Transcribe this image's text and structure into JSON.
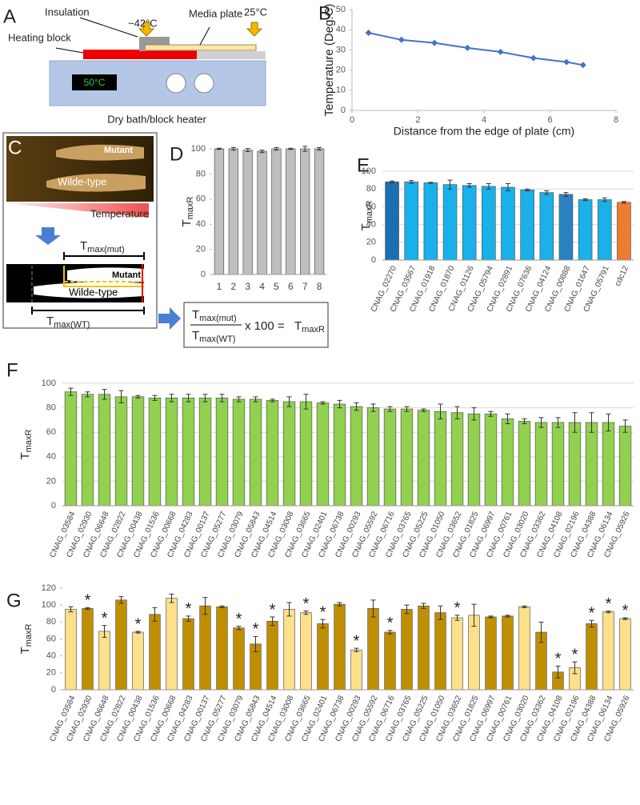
{
  "diagram_a": {
    "label": "A",
    "insulation": "Insulation",
    "hot_temp": "~42°C",
    "media_plate": "Media plate",
    "cool_temp": "25°C",
    "heating_block": "Heating block",
    "display": "50°C",
    "caption": "Dry bath/block heater"
  },
  "diagram_c": {
    "label": "C",
    "mutant": "Mutant",
    "wild": "Wilde-type",
    "temperature": "Temperature",
    "tmax_mut": {
      "main": "T",
      "sub": "max(mut)"
    },
    "mutant2": "Mutant",
    "wild2": "Wilde-type",
    "tmax_wt": {
      "main": "T",
      "sub": "max(WT)"
    }
  },
  "formula": {
    "numerator": {
      "main": "T",
      "sub": "max(mut)"
    },
    "denominator": {
      "main": "T",
      "sub": "max(WT)"
    },
    "times": "x 100 =",
    "result": {
      "main": "T",
      "sub": "maxR"
    }
  },
  "chart_data": [
    {
      "type": "line",
      "label": "B",
      "xlabel": "Distance from the edge of plate (cm)",
      "ylabel": "Temperature (Deg.C)",
      "color": "#4472c4",
      "x": [
        0.5,
        1.5,
        2.5,
        3.5,
        4.5,
        5.5,
        6.5,
        7
      ],
      "values": [
        38.5,
        35,
        33.5,
        31,
        29,
        26,
        24,
        22.5
      ],
      "xlim": [
        0,
        8
      ],
      "xticks": [
        0,
        2,
        4,
        6,
        8
      ],
      "ylim": [
        0,
        50
      ],
      "yticks": [
        0,
        10,
        20,
        30,
        40,
        50
      ],
      "grid": false
    },
    {
      "type": "bar",
      "label": "D",
      "ylabel": "T",
      "ylabel_sub": "maxR",
      "color": "#bfbfbf",
      "categories": [
        "1",
        "2",
        "3",
        "4",
        "5",
        "6",
        "7",
        "8"
      ],
      "values": [
        100,
        100,
        99,
        98,
        100,
        100,
        100,
        100
      ],
      "errors": [
        0.5,
        1,
        1.2,
        1,
        1,
        0.5,
        2,
        1
      ],
      "ylim": [
        0,
        100
      ],
      "yticks": [
        0,
        20,
        40,
        60,
        80,
        100
      ],
      "grid": false
    },
    {
      "type": "bar",
      "label": "E",
      "ylabel": "T",
      "ylabel_sub": "maxR",
      "color": "#1ab0ea",
      "categories": [
        "CNAG_02270",
        "CNAG_03567",
        "CNAG_01918",
        "CNAG_01870",
        "CNAG_01126",
        "CNAG_05794",
        "CNAG_02891",
        "CNAG_07636",
        "CNAG_04124",
        "CNAG_00888",
        "CNAG_01647",
        "CNAG_05791",
        "cdc12"
      ],
      "values": [
        88,
        88,
        87,
        85,
        84,
        83,
        82,
        79,
        76,
        74,
        68,
        68,
        65
      ],
      "errors": [
        1,
        1.5,
        0.5,
        5,
        2,
        3,
        4,
        1,
        2,
        2,
        1,
        2,
        1
      ],
      "colors": [
        "#1a6fb3",
        "#1ab0ea",
        "#1ab0ea",
        "#1ab0ea",
        "#1ab0ea",
        "#1ab0ea",
        "#1ab0ea",
        "#1ab0ea",
        "#1ab0ea",
        "#2a82c4",
        "#1ab0ea",
        "#1ab0ea",
        "#ed7d31"
      ],
      "ylim": [
        0,
        100
      ],
      "yticks": [
        0,
        20,
        40,
        60,
        80,
        100
      ],
      "grid": true
    },
    {
      "type": "bar",
      "label": "F",
      "ylabel": "T",
      "ylabel_sub": "maxR",
      "color": "#92d050",
      "categories": [
        "CNAG_03584",
        "CNAG_02930",
        "CNAG_06648",
        "CNAG_02822",
        "CNAG_00438",
        "CNAG_01536",
        "CNAG_00668",
        "CNAG_04283",
        "CNAG_00137",
        "CNAG_05277",
        "CNAG_03079",
        "CNAG_05843",
        "CNAG_04514",
        "CNAG_03008",
        "CNAG_03665",
        "CNAG_02401",
        "CNAG_06738",
        "CNAG_00293",
        "CNAG_05592",
        "CNAG_06716",
        "CNAG_03765",
        "CNAG_05225",
        "CNAG_01050",
        "CNAG_03652",
        "CNAG_01825",
        "CNAG_06997",
        "CNAG_00761",
        "CNAG_03020",
        "CNAG_03362",
        "CNAG_04108",
        "CNAG_02196",
        "CNAG_04388",
        "CNAG_06134",
        "CNAG_05926"
      ],
      "values": [
        93,
        91,
        91,
        89,
        89,
        88,
        88,
        88,
        88,
        88,
        87,
        87,
        86,
        85,
        85,
        84,
        83,
        81,
        80,
        79,
        79,
        78,
        77,
        76,
        75,
        75,
        71,
        69,
        68,
        68,
        68,
        68,
        68,
        65
      ],
      "errors": [
        3,
        2,
        4,
        5,
        1,
        2,
        3,
        3,
        3,
        3,
        2,
        2,
        1,
        4,
        6,
        1,
        3,
        3,
        3,
        2,
        2,
        1,
        6,
        5,
        5,
        2,
        4,
        2,
        4,
        4,
        8,
        8,
        7,
        5
      ],
      "ylim": [
        0,
        100
      ],
      "yticks": [
        0,
        20,
        40,
        60,
        80,
        100
      ],
      "grid": true
    },
    {
      "type": "bar",
      "label": "G",
      "ylabel": "T",
      "ylabel_sub": "maxR",
      "color": "#bf8f00",
      "categories": [
        "CNAG_03584",
        "CNAG_02930",
        "CNAG_06648",
        "CNAG_02822",
        "CNAG_00438",
        "CNAG_01536",
        "CNAG_00668",
        "CNAG_04283",
        "CNAG_00137",
        "CNAG_05277",
        "CNAG_03079",
        "CNAG_05843",
        "CNAG_04514",
        "CNAG_03008",
        "CNAG_03665",
        "CNAG_02401",
        "CNAG_06738",
        "CNAG_00293",
        "CNAG_05592",
        "CNAG_06716",
        "CNAG_03765",
        "CNAG_05225",
        "CNAG_01050",
        "CNAG_03652",
        "CNAG_01825",
        "CNAG_06997",
        "CNAG_00761",
        "CNAG_03020",
        "CNAG_03362",
        "CNAG_04108",
        "CNAG_02196",
        "CNAG_04388",
        "CNAG_06134",
        "CNAG_05926"
      ],
      "values": [
        95,
        96,
        69,
        106,
        68,
        89,
        108,
        84,
        99,
        98,
        73,
        54,
        81,
        95,
        91,
        78,
        101,
        47,
        96,
        68,
        95,
        99,
        91,
        85,
        88,
        86,
        87,
        98,
        68,
        21,
        26,
        78,
        92,
        84
      ],
      "errors": [
        3,
        1,
        7,
        4,
        1,
        8,
        5,
        3,
        10,
        1,
        2,
        9,
        5,
        8,
        2,
        5,
        2,
        2,
        10,
        2,
        5,
        3,
        8,
        3,
        13,
        1,
        1,
        1,
        12,
        7,
        7,
        4,
        1,
        1
      ],
      "colors": [
        "#ffe08a",
        "#bf8f00",
        "#ffe08a",
        "#bf8f00",
        "#ffe08a",
        "#bf8f00",
        "#ffe08a",
        "#bf8f00",
        "#bf8f00",
        "#bf8f00",
        "#bf8f00",
        "#bf8f00",
        "#bf8f00",
        "#ffe08a",
        "#ffe08a",
        "#bf8f00",
        "#bf8f00",
        "#ffe08a",
        "#bf8f00",
        "#bf8f00",
        "#bf8f00",
        "#bf8f00",
        "#bf8f00",
        "#ffe08a",
        "#ffe08a",
        "#bf8f00",
        "#bf8f00",
        "#ffe08a",
        "#bf8f00",
        "#bf8f00",
        "#ffe08a",
        "#bf8f00",
        "#ffe08a",
        "#ffe08a"
      ],
      "significance": [
        null,
        "*",
        "*",
        null,
        "*",
        null,
        null,
        "*",
        null,
        null,
        "*",
        "*",
        "*",
        null,
        "*",
        "*",
        null,
        "*",
        null,
        "*",
        null,
        null,
        null,
        "*",
        null,
        null,
        null,
        null,
        null,
        "*",
        "*",
        "*",
        "*",
        "*"
      ],
      "ylim": [
        0,
        120
      ],
      "yticks": [
        0,
        20,
        40,
        60,
        80,
        100,
        120
      ],
      "grid": false
    }
  ]
}
